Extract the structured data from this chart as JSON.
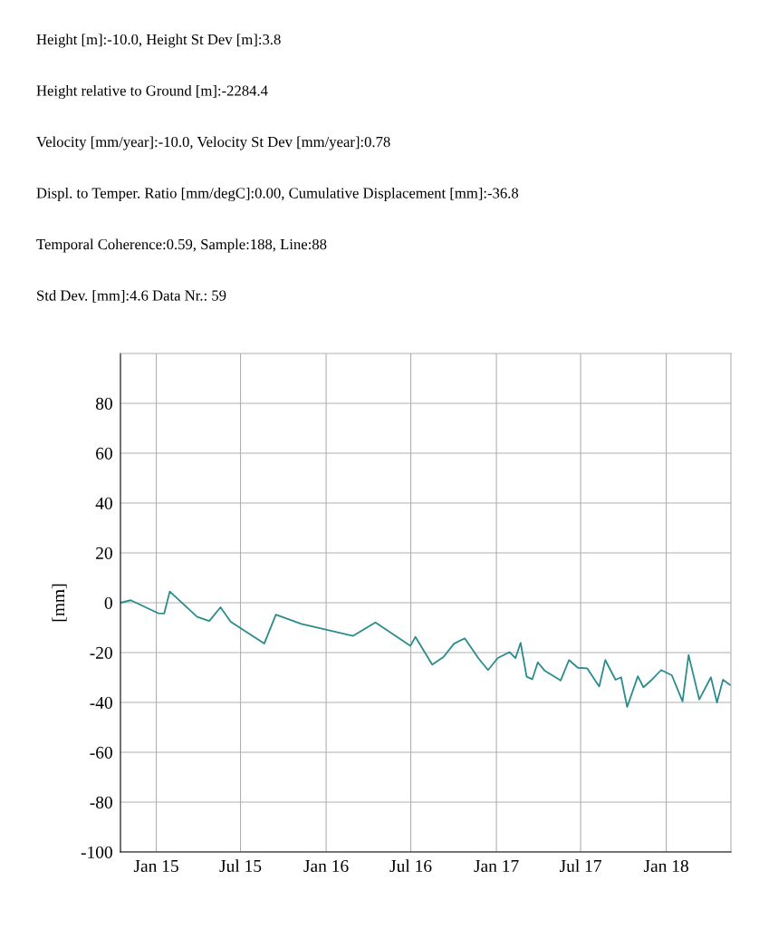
{
  "chart_data": {
    "type": "line",
    "ylabel": "[mm]",
    "annotations": [
      "Height [m]:-10.0, Height St Dev [m]:3.8",
      "Height relative to Ground [m]:-2284.4",
      "Velocity [mm/year]:-10.0, Velocity St Dev [mm/year]:0.78",
      "Displ. to Temper. Ratio [mm/degC]:0.00, Cumulative Displacement [mm]:-36.8",
      "Temporal Coherence:0.59, Sample:188, Line:88",
      "Std Dev. [mm]:4.6 Data Nr.: 59"
    ],
    "x": [
      "2014-10-16",
      "2014-11-07",
      "2015-01-05",
      "2015-01-18",
      "2015-01-30",
      "2015-03-30",
      "2015-04-25",
      "2015-05-19",
      "2015-06-10",
      "2015-08-21",
      "2015-09-15",
      "2015-11-09",
      "2016-02-28",
      "2016-04-16",
      "2016-06-30",
      "2016-07-11",
      "2016-08-16",
      "2016-09-09",
      "2016-10-02",
      "2016-10-25",
      "2016-11-23",
      "2016-12-14",
      "2017-01-04",
      "2017-01-29",
      "2017-02-11",
      "2017-02-22",
      "2017-03-07",
      "2017-03-19",
      "2017-03-31",
      "2017-04-15",
      "2017-05-19",
      "2017-06-06",
      "2017-06-25",
      "2017-07-15",
      "2017-08-10",
      "2017-08-23",
      "2017-09-14",
      "2017-09-26",
      "2017-10-09",
      "2017-11-01",
      "2017-11-13",
      "2017-12-01",
      "2017-12-21",
      "2018-01-13",
      "2018-02-05",
      "2018-02-18",
      "2018-03-13",
      "2018-04-07",
      "2018-04-20",
      "2018-05-03",
      "2018-05-19"
    ],
    "series": [
      {
        "color": "#2a8c8c",
        "values": [
          0,
          1,
          -4.2,
          -4.3,
          4.5,
          -5.7,
          -7.3,
          -1.8,
          -7.6,
          -16.4,
          -4.8,
          -8.5,
          -13.3,
          -7.9,
          -17.3,
          -13.7,
          -24.8,
          -21.8,
          -16.4,
          -14.3,
          -22.2,
          -27.0,
          -22.2,
          -19.8,
          -22.2,
          -16.1,
          -29.7,
          -30.7,
          -23.9,
          -27.3,
          -31.2,
          -23.0,
          -26.1,
          -26.3,
          -33.6,
          -23.0,
          -30.9,
          -29.9,
          -41.8,
          -29.5,
          -33.9,
          -30.9,
          -27.0,
          -29.1,
          -39.6,
          -21.0,
          -38.8,
          -29.9,
          -40.0,
          -30.9,
          -33.1
        ]
      }
    ],
    "xlim": [
      "2014-10-16",
      "2018-05-20"
    ],
    "xticks": [
      {
        "value": "2015-01-01",
        "label": "Jan 15"
      },
      {
        "value": "2015-07-01",
        "label": "Jul 15"
      },
      {
        "value": "2016-01-01",
        "label": "Jan 16"
      },
      {
        "value": "2016-07-01",
        "label": "Jul 16"
      },
      {
        "value": "2017-01-01",
        "label": "Jan 17"
      },
      {
        "value": "2017-07-01",
        "label": "Jul 17"
      },
      {
        "value": "2018-01-01",
        "label": "Jan 18"
      }
    ],
    "ylim": [
      -100,
      100
    ],
    "yticks": [
      -100,
      -80,
      -60,
      -40,
      -20,
      0,
      20,
      40,
      60,
      80
    ],
    "grid": true,
    "marker": "none",
    "line_style": "solid"
  }
}
